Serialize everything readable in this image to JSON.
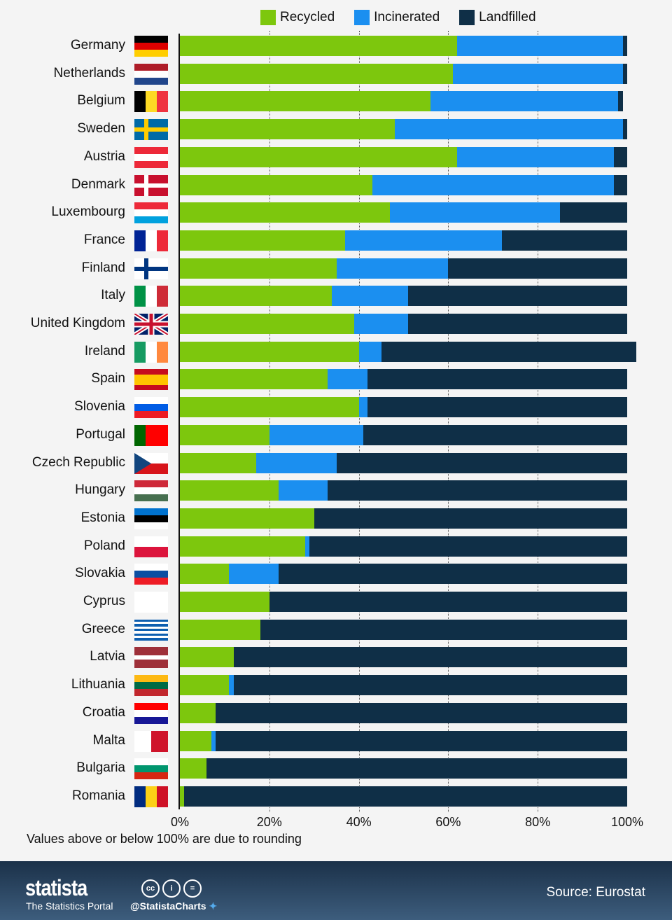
{
  "chart_data": {
    "type": "bar",
    "orientation": "horizontal",
    "stacked": true,
    "xlim": [
      0,
      100
    ],
    "xticks": [
      "0%",
      "20%",
      "40%",
      "60%",
      "80%",
      "100%"
    ],
    "legend": [
      {
        "name": "Recycled",
        "color": "#7dc70d"
      },
      {
        "name": "Incinerated",
        "color": "#1b8ff0"
      },
      {
        "name": "Landfilled",
        "color": "#0f2f47"
      }
    ],
    "legend_position": "top",
    "categories": [
      "Germany",
      "Netherlands",
      "Belgium",
      "Sweden",
      "Austria",
      "Denmark",
      "Luxembourg",
      "France",
      "Finland",
      "Italy",
      "United Kingdom",
      "Ireland",
      "Spain",
      "Slovenia",
      "Portugal",
      "Czech Republic",
      "Hungary",
      "Estonia",
      "Poland",
      "Slovakia",
      "Cyprus",
      "Greece",
      "Latvia",
      "Lithuania",
      "Croatia",
      "Malta",
      "Bulgaria",
      "Romania"
    ],
    "series": [
      {
        "name": "Recycled",
        "values": [
          62,
          61,
          56,
          48,
          62,
          43,
          47,
          37,
          35,
          34,
          39,
          40,
          33,
          40,
          20,
          17,
          22,
          30,
          28,
          11,
          20,
          18,
          12,
          11,
          8,
          7,
          6,
          1
        ]
      },
      {
        "name": "Incinerated",
        "values": [
          37,
          38,
          42,
          51,
          35,
          54,
          38,
          35,
          25,
          17,
          12,
          5,
          9,
          2,
          21,
          18,
          11,
          0,
          1,
          11,
          0,
          0,
          0,
          1,
          0,
          1,
          0,
          0
        ]
      },
      {
        "name": "Landfilled",
        "values": [
          1,
          1,
          1,
          1,
          3,
          3,
          15,
          28,
          40,
          49,
          49,
          57,
          58,
          58,
          59,
          65,
          67,
          70,
          71,
          78,
          80,
          82,
          88,
          88,
          92,
          92,
          94,
          99
        ]
      }
    ],
    "note": "Values above or below 100% are due to rounding"
  },
  "flags": [
    {
      "t": "h",
      "c": [
        "#000",
        "#dd0000",
        "#ffce00"
      ]
    },
    {
      "t": "h",
      "c": [
        "#ae1c28",
        "#fff",
        "#21468b"
      ]
    },
    {
      "t": "v",
      "c": [
        "#000",
        "#fdda24",
        "#ef3340"
      ]
    },
    {
      "t": "nordic",
      "c": [
        "#006aa7",
        "#fecc00"
      ]
    },
    {
      "t": "h",
      "c": [
        "#ed2939",
        "#fff",
        "#ed2939"
      ]
    },
    {
      "t": "nordic",
      "c": [
        "#c8102e",
        "#fff"
      ]
    },
    {
      "t": "h",
      "c": [
        "#ed2939",
        "#fff",
        "#00a1de"
      ]
    },
    {
      "t": "v",
      "c": [
        "#002395",
        "#fff",
        "#ed2939"
      ]
    },
    {
      "t": "nordic",
      "c": [
        "#fff",
        "#003580"
      ]
    },
    {
      "t": "v",
      "c": [
        "#009246",
        "#fff",
        "#ce2b37"
      ]
    },
    {
      "t": "uk",
      "c": [
        "#012169",
        "#fff",
        "#c8102e"
      ]
    },
    {
      "t": "v",
      "c": [
        "#169b62",
        "#fff",
        "#ff883e"
      ]
    },
    {
      "t": "h",
      "c": [
        "#c60b1e",
        "#ffc400",
        "#ffc400",
        "#c60b1e"
      ]
    },
    {
      "t": "h",
      "c": [
        "#fff",
        "#005ce5",
        "#ed1c24"
      ]
    },
    {
      "t": "v",
      "c": [
        "#006600",
        "#ff0000",
        "#ff0000"
      ]
    },
    {
      "t": "cz",
      "c": [
        "#fff",
        "#d7141a",
        "#11457e"
      ]
    },
    {
      "t": "h",
      "c": [
        "#ce2939",
        "#fff",
        "#477050"
      ]
    },
    {
      "t": "h",
      "c": [
        "#0072ce",
        "#000",
        "#fff"
      ]
    },
    {
      "t": "h",
      "c": [
        "#fff",
        "#dc143c"
      ]
    },
    {
      "t": "h",
      "c": [
        "#fff",
        "#0b4ea2",
        "#ee1c25"
      ]
    },
    {
      "t": "h",
      "c": [
        "#fff"
      ]
    },
    {
      "t": "h",
      "c": [
        "#0d5eaf",
        "#fff",
        "#0d5eaf",
        "#fff",
        "#0d5eaf",
        "#fff",
        "#0d5eaf",
        "#fff",
        "#0d5eaf"
      ]
    },
    {
      "t": "h",
      "c": [
        "#9e3039",
        "#9e3039",
        "#fff",
        "#9e3039",
        "#9e3039"
      ]
    },
    {
      "t": "h",
      "c": [
        "#fdb913",
        "#006a44",
        "#c1272d"
      ]
    },
    {
      "t": "h",
      "c": [
        "#ff0000",
        "#fff",
        "#171796"
      ]
    },
    {
      "t": "v",
      "c": [
        "#fff",
        "#cf142b"
      ]
    },
    {
      "t": "h",
      "c": [
        "#fff",
        "#00966e",
        "#d62612"
      ]
    },
    {
      "t": "v",
      "c": [
        "#002b7f",
        "#fcd116",
        "#ce1126"
      ]
    }
  ],
  "footer": {
    "logo": "statista",
    "tagline": "The Statistics Portal",
    "handle": "@StatistaCharts",
    "license_icons": [
      "cc",
      "i",
      "="
    ],
    "source": "Source: Eurostat"
  }
}
